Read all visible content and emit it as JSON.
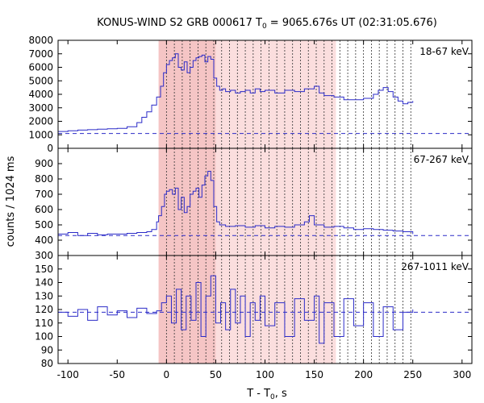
{
  "title": {
    "prefix": "KONUS-WIND S2 GRB 000617 T",
    "sub": "0",
    "suffix": " = 9065.676s UT (02:31:05.676)"
  },
  "ylabel": "counts / 1024 ms",
  "xlabel": {
    "prefix": "T - T",
    "sub": "0",
    "suffix": ", s"
  },
  "chart_data": {
    "type": "line",
    "xlim": [
      -110,
      310
    ],
    "x_ticks": [
      -100,
      -50,
      0,
      50,
      100,
      150,
      200,
      250,
      300
    ],
    "shade_span": [
      -8,
      172
    ],
    "dark_shade_span": [
      -8,
      50
    ],
    "dotted_lines": [
      0,
      8,
      16,
      24,
      32,
      40,
      48,
      56,
      64,
      72,
      80,
      88,
      96,
      104,
      112,
      120,
      128,
      136,
      144,
      152,
      160,
      168,
      176,
      184,
      192,
      200,
      208,
      216,
      224,
      232,
      240,
      248
    ],
    "colors": {
      "line": "#2b2bc8",
      "shade": "#f7c2c2",
      "dark_shade": "#eea6a6",
      "dotted": "#333333"
    },
    "panels": [
      {
        "label": "18-67 keV",
        "ylim": [
          0,
          8000
        ],
        "y_ticks": [
          0,
          1000,
          2000,
          3000,
          4000,
          5000,
          6000,
          7000,
          8000
        ],
        "background": 1100,
        "series": [
          [
            -110,
            1250
          ],
          [
            -100,
            1300
          ],
          [
            -90,
            1350
          ],
          [
            -80,
            1380
          ],
          [
            -70,
            1420
          ],
          [
            -60,
            1450
          ],
          [
            -50,
            1480
          ],
          [
            -40,
            1600
          ],
          [
            -30,
            1900
          ],
          [
            -25,
            2300
          ],
          [
            -20,
            2700
          ],
          [
            -15,
            3200
          ],
          [
            -10,
            3800
          ],
          [
            -6,
            4600
          ],
          [
            -3,
            5600
          ],
          [
            0,
            6200
          ],
          [
            3,
            6500
          ],
          [
            6,
            6700
          ],
          [
            9,
            7000
          ],
          [
            12,
            6000
          ],
          [
            15,
            5800
          ],
          [
            18,
            6400
          ],
          [
            21,
            5600
          ],
          [
            24,
            6000
          ],
          [
            27,
            6500
          ],
          [
            30,
            6700
          ],
          [
            33,
            6800
          ],
          [
            36,
            6900
          ],
          [
            39,
            6400
          ],
          [
            42,
            6800
          ],
          [
            45,
            6600
          ],
          [
            48,
            5200
          ],
          [
            51,
            4600
          ],
          [
            54,
            4300
          ],
          [
            57,
            4400
          ],
          [
            60,
            4200
          ],
          [
            65,
            4300
          ],
          [
            70,
            4100
          ],
          [
            75,
            4200
          ],
          [
            80,
            4300
          ],
          [
            85,
            4100
          ],
          [
            90,
            4400
          ],
          [
            95,
            4200
          ],
          [
            100,
            4300
          ],
          [
            110,
            4100
          ],
          [
            120,
            4300
          ],
          [
            130,
            4200
          ],
          [
            140,
            4400
          ],
          [
            150,
            4600
          ],
          [
            155,
            4100
          ],
          [
            160,
            3900
          ],
          [
            170,
            3800
          ],
          [
            180,
            3600
          ],
          [
            190,
            3600
          ],
          [
            200,
            3700
          ],
          [
            210,
            4000
          ],
          [
            215,
            4300
          ],
          [
            220,
            4500
          ],
          [
            225,
            4200
          ],
          [
            230,
            3800
          ],
          [
            235,
            3500
          ],
          [
            240,
            3300
          ],
          [
            245,
            3400
          ],
          [
            250,
            3500
          ]
        ]
      },
      {
        "label": "67-267 keV",
        "ylim": [
          300,
          1000
        ],
        "y_ticks": [
          300,
          400,
          500,
          600,
          700,
          800,
          900
        ],
        "background": 430,
        "series": [
          [
            -110,
            440
          ],
          [
            -100,
            450
          ],
          [
            -90,
            430
          ],
          [
            -80,
            445
          ],
          [
            -70,
            435
          ],
          [
            -60,
            440
          ],
          [
            -50,
            440
          ],
          [
            -40,
            445
          ],
          [
            -30,
            450
          ],
          [
            -20,
            455
          ],
          [
            -15,
            470
          ],
          [
            -10,
            520
          ],
          [
            -8,
            560
          ],
          [
            -5,
            620
          ],
          [
            -2,
            700
          ],
          [
            0,
            720
          ],
          [
            3,
            730
          ],
          [
            6,
            700
          ],
          [
            9,
            740
          ],
          [
            12,
            600
          ],
          [
            15,
            680
          ],
          [
            18,
            580
          ],
          [
            21,
            620
          ],
          [
            24,
            700
          ],
          [
            27,
            720
          ],
          [
            30,
            740
          ],
          [
            33,
            680
          ],
          [
            36,
            760
          ],
          [
            39,
            820
          ],
          [
            42,
            850
          ],
          [
            45,
            790
          ],
          [
            48,
            620
          ],
          [
            51,
            520
          ],
          [
            54,
            500
          ],
          [
            60,
            490
          ],
          [
            70,
            495
          ],
          [
            80,
            485
          ],
          [
            90,
            495
          ],
          [
            100,
            480
          ],
          [
            110,
            490
          ],
          [
            120,
            485
          ],
          [
            130,
            500
          ],
          [
            140,
            520
          ],
          [
            145,
            560
          ],
          [
            150,
            500
          ],
          [
            160,
            485
          ],
          [
            170,
            490
          ],
          [
            180,
            480
          ],
          [
            190,
            470
          ],
          [
            200,
            475
          ],
          [
            210,
            470
          ],
          [
            220,
            465
          ],
          [
            230,
            460
          ],
          [
            240,
            455
          ],
          [
            250,
            440
          ]
        ]
      },
      {
        "label": "267-1011 keV",
        "ylim": [
          80,
          160
        ],
        "y_ticks": [
          80,
          90,
          100,
          110,
          120,
          130,
          140,
          150
        ],
        "background": 118,
        "series": [
          [
            -110,
            118
          ],
          [
            -100,
            115
          ],
          [
            -90,
            120
          ],
          [
            -80,
            112
          ],
          [
            -70,
            122
          ],
          [
            -60,
            116
          ],
          [
            -50,
            119
          ],
          [
            -40,
            114
          ],
          [
            -30,
            121
          ],
          [
            -20,
            117
          ],
          [
            -10,
            119
          ],
          [
            -5,
            125
          ],
          [
            0,
            130
          ],
          [
            5,
            110
          ],
          [
            10,
            135
          ],
          [
            15,
            105
          ],
          [
            20,
            130
          ],
          [
            25,
            112
          ],
          [
            30,
            140
          ],
          [
            35,
            100
          ],
          [
            40,
            130
          ],
          [
            45,
            145
          ],
          [
            50,
            110
          ],
          [
            55,
            125
          ],
          [
            60,
            105
          ],
          [
            65,
            135
          ],
          [
            70,
            110
          ],
          [
            75,
            130
          ],
          [
            80,
            100
          ],
          [
            85,
            125
          ],
          [
            90,
            112
          ],
          [
            95,
            130
          ],
          [
            100,
            108
          ],
          [
            110,
            125
          ],
          [
            120,
            100
          ],
          [
            130,
            128
          ],
          [
            140,
            112
          ],
          [
            150,
            130
          ],
          [
            155,
            95
          ],
          [
            160,
            125
          ],
          [
            170,
            100
          ],
          [
            180,
            128
          ],
          [
            190,
            108
          ],
          [
            200,
            125
          ],
          [
            210,
            100
          ],
          [
            220,
            122
          ],
          [
            230,
            105
          ],
          [
            240,
            118
          ],
          [
            250,
            120
          ]
        ]
      }
    ]
  }
}
